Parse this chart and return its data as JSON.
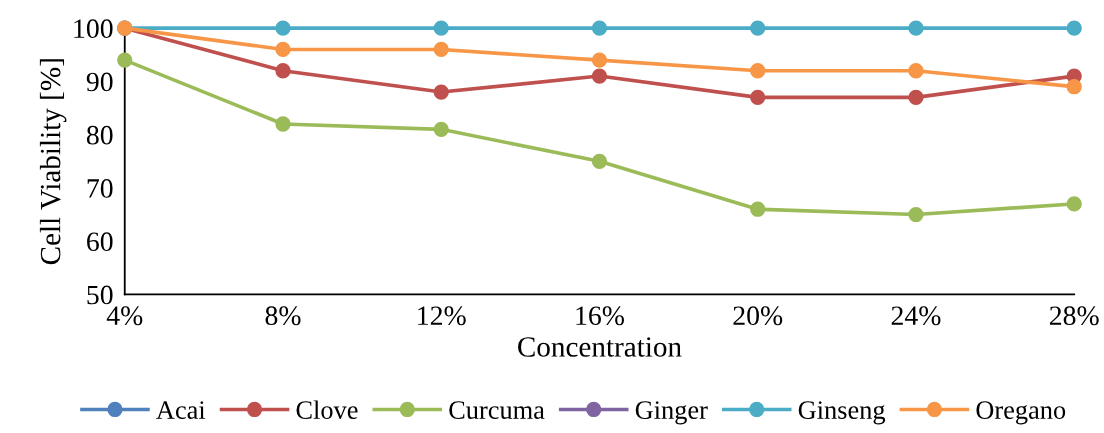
{
  "chart_data": {
    "type": "line",
    "xlabel": "Concentration",
    "ylabel": "Cell Viability [%]",
    "categories": [
      "4%",
      "8%",
      "12%",
      "16%",
      "20%",
      "24%",
      "28%"
    ],
    "series": [
      {
        "name": "Acai",
        "color": "#4f81bd",
        "values": [
          null,
          null,
          null,
          null,
          null,
          null,
          null
        ]
      },
      {
        "name": "Clove",
        "color": "#c0504d",
        "values": [
          100,
          92,
          88,
          91,
          87,
          87,
          91
        ]
      },
      {
        "name": "Curcuma",
        "color": "#9bbb59",
        "values": [
          94,
          82,
          81,
          75,
          66,
          65,
          67
        ]
      },
      {
        "name": "Ginger",
        "color": "#8064a2",
        "values": [
          null,
          null,
          null,
          null,
          null,
          null,
          null
        ]
      },
      {
        "name": "Ginseng",
        "color": "#4bacc6",
        "values": [
          100,
          100,
          100,
          100,
          100,
          100,
          100
        ]
      },
      {
        "name": "Oregano",
        "color": "#f79646",
        "values": [
          100,
          96,
          96,
          94,
          92,
          92,
          89
        ]
      }
    ],
    "ylim": [
      50,
      100
    ],
    "yticks": [
      50,
      60,
      70,
      80,
      90,
      100
    ],
    "grid": false,
    "legend": "bottom",
    "marker": "circle",
    "line_style": "solid"
  }
}
